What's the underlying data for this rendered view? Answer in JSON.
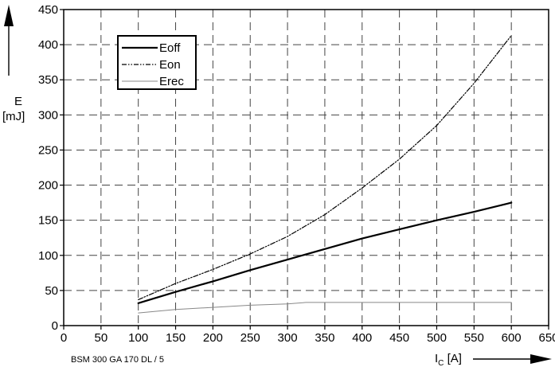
{
  "chart_data": {
    "type": "line",
    "title": "",
    "ylabel_symbol": "E",
    "ylabel_unit": "[mJ]",
    "xlabel_symbol": "I",
    "xlabel_subscript": "C",
    "xlabel_unit": "[A]",
    "footnote": "BSM 300 GA 170 DL / 5",
    "xlim": [
      0,
      650
    ],
    "ylim": [
      0,
      450
    ],
    "xticks": [
      0,
      50,
      100,
      150,
      200,
      250,
      300,
      350,
      400,
      450,
      500,
      550,
      600,
      650
    ],
    "yticks": [
      0,
      50,
      100,
      150,
      200,
      250,
      300,
      350,
      400,
      450
    ],
    "grid": true,
    "legend_position": "top-left",
    "series": [
      {
        "name": "Eoff",
        "style": "solid-thick",
        "color": "#000000",
        "x": [
          100,
          150,
          200,
          250,
          300,
          350,
          400,
          450,
          500,
          550,
          600
        ],
        "y": [
          32,
          48,
          63,
          79,
          94,
          109,
          124,
          137,
          150,
          162,
          175
        ]
      },
      {
        "name": "Eon",
        "style": "dash-dot-dot",
        "color": "#000000",
        "x": [
          100,
          150,
          200,
          250,
          300,
          350,
          400,
          450,
          500,
          550,
          600
        ],
        "y": [
          37,
          60,
          80,
          102,
          127,
          158,
          196,
          237,
          285,
          345,
          413
        ]
      },
      {
        "name": "Erec",
        "style": "solid-thin",
        "color": "#888888",
        "x": [
          100,
          150,
          200,
          250,
          300,
          325,
          350,
          400,
          450,
          500,
          550,
          600
        ],
        "y": [
          18,
          23,
          26,
          29,
          31,
          33,
          33,
          33,
          33,
          33,
          33,
          33
        ]
      }
    ]
  }
}
